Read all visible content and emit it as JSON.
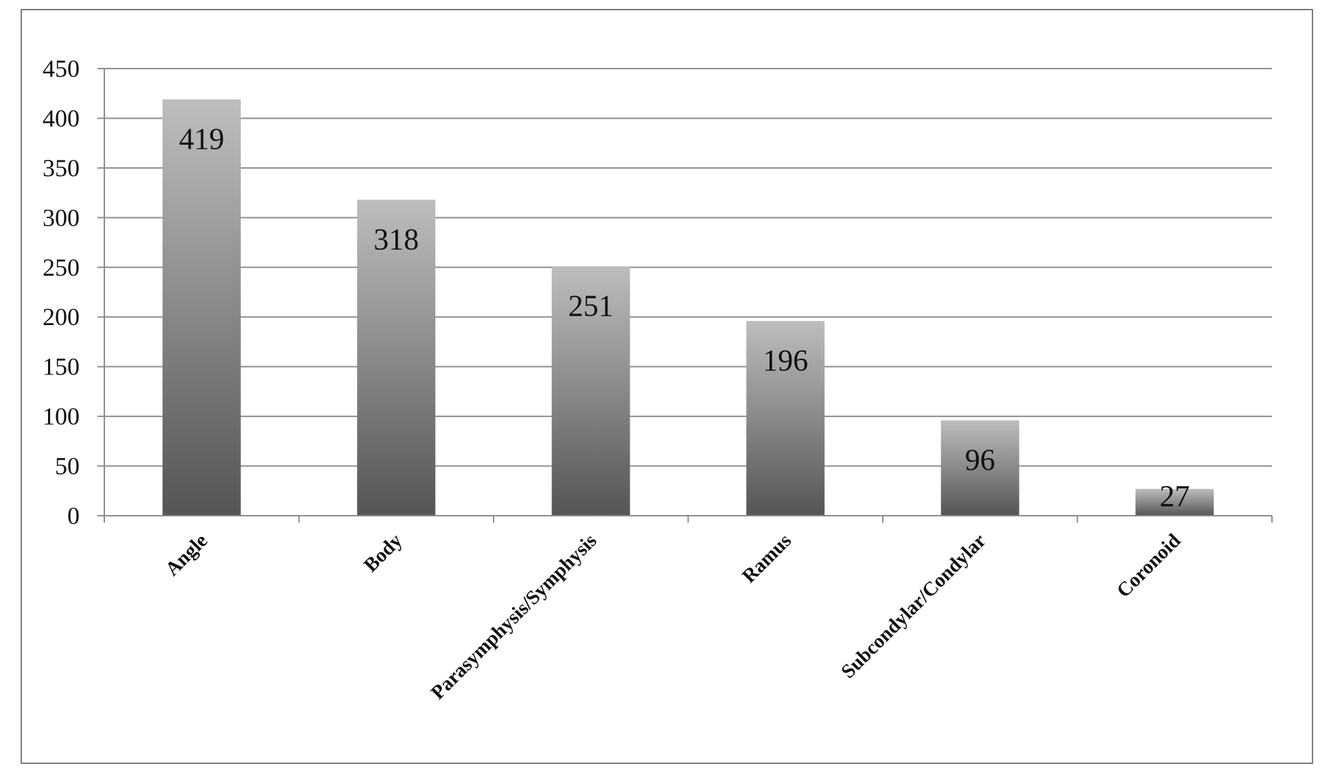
{
  "chart_data": {
    "type": "bar",
    "categories": [
      "Angle",
      "Body",
      "Parasymphysis/Symphysis",
      "Ramus",
      "Subcondylar/Condylar",
      "Coronoid"
    ],
    "values": [
      419,
      318,
      251,
      196,
      96,
      27
    ],
    "data_labels": [
      "419",
      "318",
      "251",
      "196",
      "96",
      "27"
    ],
    "title": "",
    "xlabel": "",
    "ylabel": "",
    "ylim": [
      0,
      450
    ],
    "yticks": [
      0,
      50,
      100,
      150,
      200,
      250,
      300,
      350,
      400,
      450
    ],
    "ytick_labels": [
      "0",
      "50",
      "100",
      "150",
      "200",
      "250",
      "300",
      "350",
      "400",
      "450"
    ],
    "grid": true,
    "legend": "none",
    "colors": {
      "bar_top": "#bdbdbd",
      "bar_bottom": "#555555",
      "grid": "#8c8c8c",
      "axis": "#8c8c8c",
      "frame": "#7a7a7a"
    }
  }
}
